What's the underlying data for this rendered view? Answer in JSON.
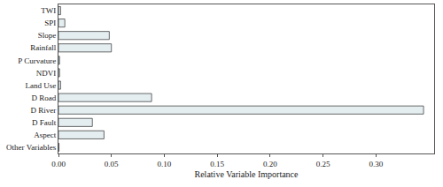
{
  "chart_data": {
    "type": "bar",
    "orientation": "horizontal",
    "x_label": "Relative Variable Importance",
    "categories": [
      "TWI",
      "SPI",
      "Slope",
      "Rainfall",
      "P Curvature",
      "NDVI",
      "Land Use",
      "D Road",
      "D River",
      "D Fault",
      "Aspect",
      "Other Variables"
    ],
    "values": [
      0.002,
      0.006,
      0.048,
      0.05,
      0.001,
      0.001,
      0.002,
      0.088,
      0.345,
      0.032,
      0.043,
      0.0005
    ],
    "color": "#e4eef1",
    "xlim": [
      0,
      0.355
    ],
    "xticks": [
      {
        "value": 0,
        "label": "0.00"
      },
      0.05,
      {
        "value": 0.1,
        "label": "0.10"
      },
      0.15,
      {
        "value": 0.2,
        "label": "0.20"
      },
      0.25,
      {
        "value": 0.3,
        "label": "0.30"
      }
    ],
    "grid": false
  }
}
